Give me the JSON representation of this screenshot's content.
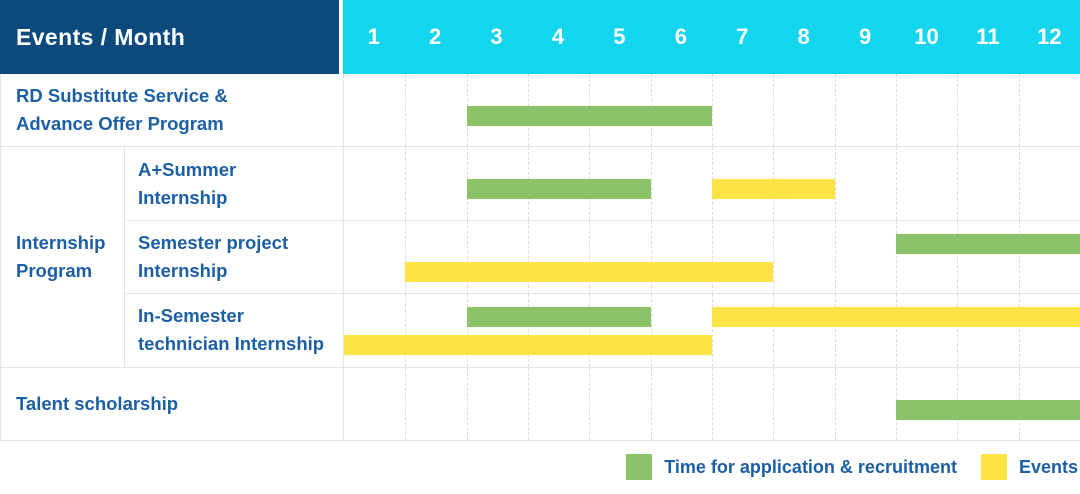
{
  "header": {
    "title": "Events / Month",
    "months": [
      "1",
      "2",
      "3",
      "4",
      "5",
      "6",
      "7",
      "8",
      "9",
      "10",
      "11",
      "12"
    ]
  },
  "colors": {
    "header_bg": "#0c4a7e",
    "months_bg": "#14d5ee",
    "green": "#8bc468",
    "yellow": "#ffe345",
    "label_text": "#1c5fa4",
    "header_text": "#ffffff",
    "grid_line": "#dcdcdc",
    "row_border": "#e4e4e4"
  },
  "chart_data": {
    "type": "bar",
    "variant": "gantt",
    "title": "Events / Month",
    "x_axis": {
      "label": "Month",
      "ticks": [
        1,
        2,
        3,
        4,
        5,
        6,
        7,
        8,
        9,
        10,
        11,
        12
      ],
      "range": [
        1,
        12
      ]
    },
    "legend_position": "bottom-right",
    "grid": "dashed-vertical-month-lines",
    "series_legend": [
      {
        "name": "Time for application & recruitment",
        "color": "#8bc468"
      },
      {
        "name": "Events",
        "color": "#ffe345"
      }
    ],
    "rows": [
      {
        "group": "",
        "label": "RD Substitute Service & Advance Offer Program",
        "label_lines": [
          "RD Substitute Service &",
          "Advance Offer Program"
        ],
        "bars": [
          {
            "series": "Time for application & recruitment",
            "color_key": "green",
            "start_month": 3,
            "end_month": 6,
            "lane": "single"
          }
        ]
      },
      {
        "group": "Internship Program",
        "group_lines": [
          "Internship",
          "Program"
        ],
        "label": "A+Summer Internship",
        "label_lines": [
          "A+Summer",
          "Internship"
        ],
        "bars": [
          {
            "series": "Time for application & recruitment",
            "color_key": "green",
            "start_month": 3,
            "end_month": 5,
            "lane": "single"
          },
          {
            "series": "Events",
            "color_key": "yellow",
            "start_month": 7,
            "end_month": 8,
            "lane": "single"
          }
        ]
      },
      {
        "group": "Internship Program",
        "label": "Semester project Internship",
        "label_lines": [
          "Semester project",
          "Internship"
        ],
        "bars": [
          {
            "series": "Time for application & recruitment",
            "color_key": "green",
            "start_month": 10,
            "end_month": 12,
            "lane": "top"
          },
          {
            "series": "Events",
            "color_key": "yellow",
            "start_month": 2,
            "end_month": 7,
            "lane": "bottom"
          }
        ]
      },
      {
        "group": "Internship Program",
        "label": "In-Semester technician Internship",
        "label_lines": [
          "In-Semester",
          "technician Internship"
        ],
        "bars": [
          {
            "series": "Time for application & recruitment",
            "color_key": "green",
            "start_month": 3,
            "end_month": 5,
            "lane": "top"
          },
          {
            "series": "Events",
            "color_key": "yellow",
            "start_month": 7,
            "end_month": 12,
            "lane": "top"
          },
          {
            "series": "Events",
            "color_key": "yellow",
            "start_month": 1,
            "end_month": 6,
            "lane": "bottom"
          }
        ]
      },
      {
        "group": "",
        "label": "Talent scholarship",
        "label_lines": [
          "Talent scholarship"
        ],
        "bars": [
          {
            "series": "Time for application & recruitment",
            "color_key": "green",
            "start_month": 10,
            "end_month": 12,
            "lane": "single"
          }
        ]
      }
    ]
  },
  "legend": [
    {
      "label": "Time for application & recruitment",
      "color_key": "green"
    },
    {
      "label": "Events",
      "color_key": "yellow"
    }
  ]
}
